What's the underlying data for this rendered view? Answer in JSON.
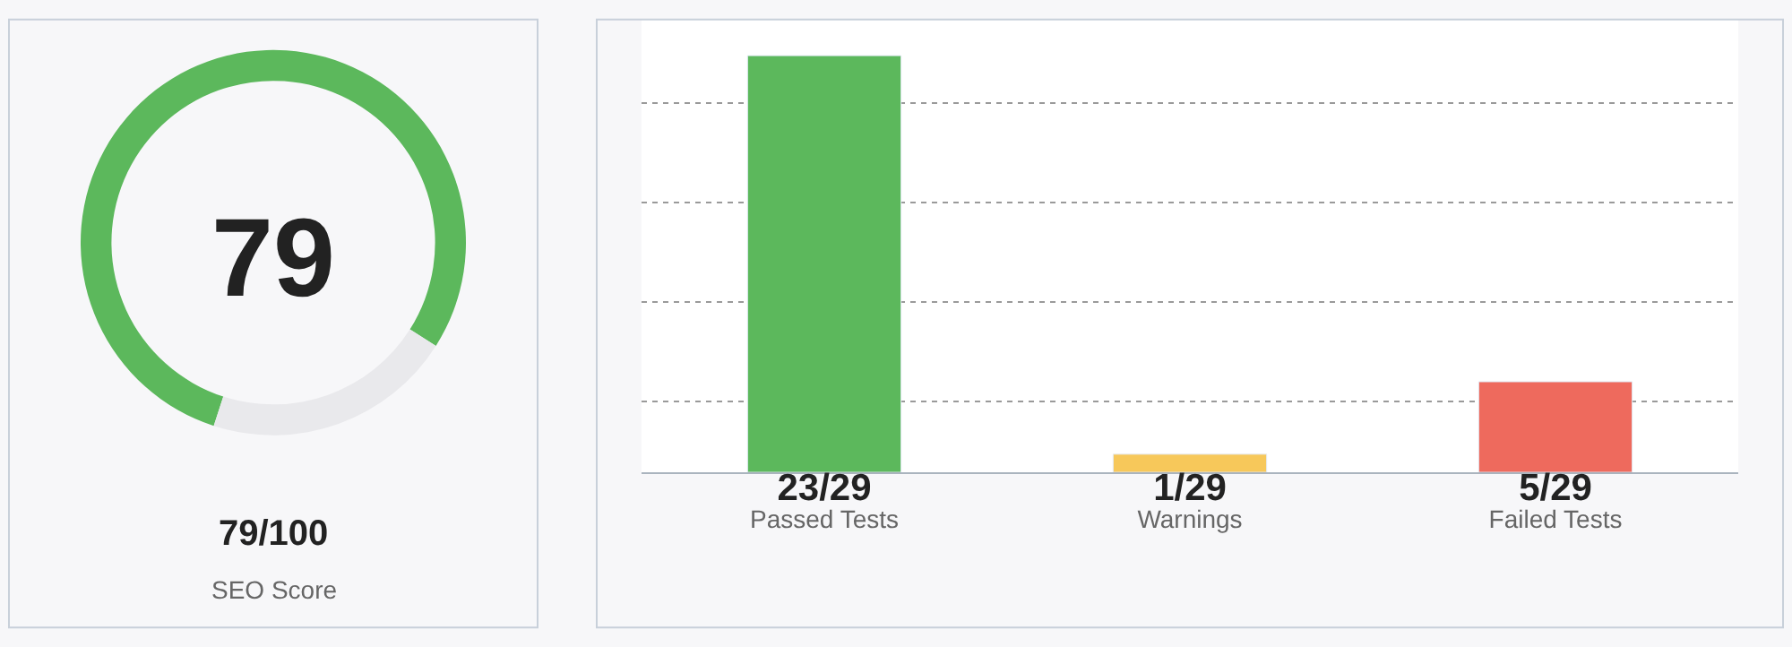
{
  "chart_data": [
    {
      "type": "donut",
      "categories": [
        null,
        null
      ],
      "values": [
        79,
        21
      ],
      "colors": [
        "#5cb85c",
        "#e9e9ec"
      ],
      "annotations": [
        "79",
        "79/100",
        "SEO Score"
      ]
    },
    {
      "type": "bar",
      "categories": [
        "Passed Tests",
        "Warnings",
        "Failed Tests"
      ],
      "values": [
        23,
        1,
        5
      ],
      "colors": [
        "#5cb85c",
        "#f7c85a",
        "#ee6a5d"
      ],
      "value_labels": [
        "23/29",
        "1/29",
        "5/29"
      ],
      "ylim": [
        0,
        25
      ],
      "yticks": [
        {
          "value": 3.9,
          "label": null
        },
        {
          "value": 9.4,
          "label": null
        },
        {
          "value": 14.9,
          "label": null
        },
        {
          "value": 20.4,
          "label": null
        }
      ],
      "grid": "y",
      "tick_labels": "x"
    }
  ]
}
